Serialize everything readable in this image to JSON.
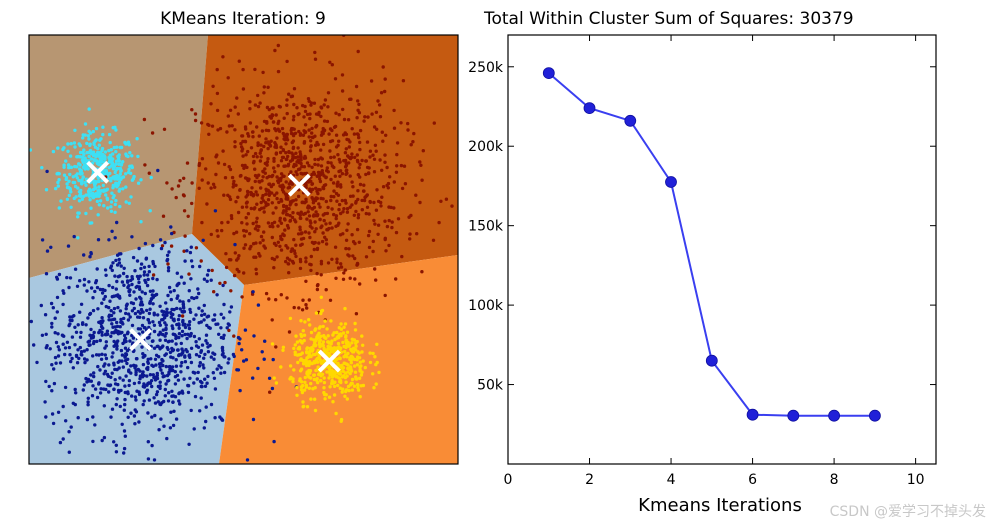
{
  "chart_data": [
    {
      "type": "scatter",
      "title": "KMeans Iteration: 9",
      "regions": [
        {
          "name": "",
          "color": "#b79672"
        },
        {
          "name": "",
          "color": "#c55a11"
        },
        {
          "name": "",
          "color": "#a9c8e0"
        },
        {
          "name": "",
          "color": "#f98c36"
        }
      ],
      "clusters": [
        {
          "color": "#3ee0f4",
          "center": [
            0.16,
            0.68
          ],
          "spread": 0.045,
          "count": 420
        },
        {
          "color": "#8b1500",
          "center": [
            0.63,
            0.65
          ],
          "spread": 0.12,
          "count": 1100
        },
        {
          "color": "#0b1991",
          "center": [
            0.26,
            0.29
          ],
          "spread": 0.11,
          "count": 1000
        },
        {
          "color": "#ffd800",
          "center": [
            0.7,
            0.24
          ],
          "spread": 0.045,
          "count": 480
        }
      ],
      "centroid_color": "#ffffff",
      "centroids": [
        [
          0.16,
          0.68
        ],
        [
          0.63,
          0.65
        ],
        [
          0.26,
          0.29
        ],
        [
          0.7,
          0.24
        ]
      ]
    },
    {
      "type": "line",
      "title": "Total Within Cluster Sum of Squares: 30379",
      "xlabel": "Kmeans Iterations",
      "ylabel": "",
      "x": [
        1,
        2,
        3,
        4,
        5,
        6,
        7,
        8,
        9
      ],
      "y": [
        246000,
        224000,
        216000,
        177500,
        65000,
        31000,
        30400,
        30379,
        30379
      ],
      "xlim": [
        0,
        10.5
      ],
      "ylim": [
        0,
        270000
      ],
      "xticks": [
        0,
        2,
        4,
        6,
        8,
        10
      ],
      "xtick_labels": [
        "0",
        "2",
        "4",
        "6",
        "8",
        "10"
      ],
      "yticks": [
        50000,
        100000,
        150000,
        200000,
        250000
      ],
      "ytick_labels": [
        "50k",
        "100k",
        "150k",
        "200k",
        "250k"
      ],
      "line_color": "#3a3ff0",
      "marker_color": "#2020d8",
      "grid": false
    }
  ],
  "watermark": "CSDN @爱学习不掉头发"
}
